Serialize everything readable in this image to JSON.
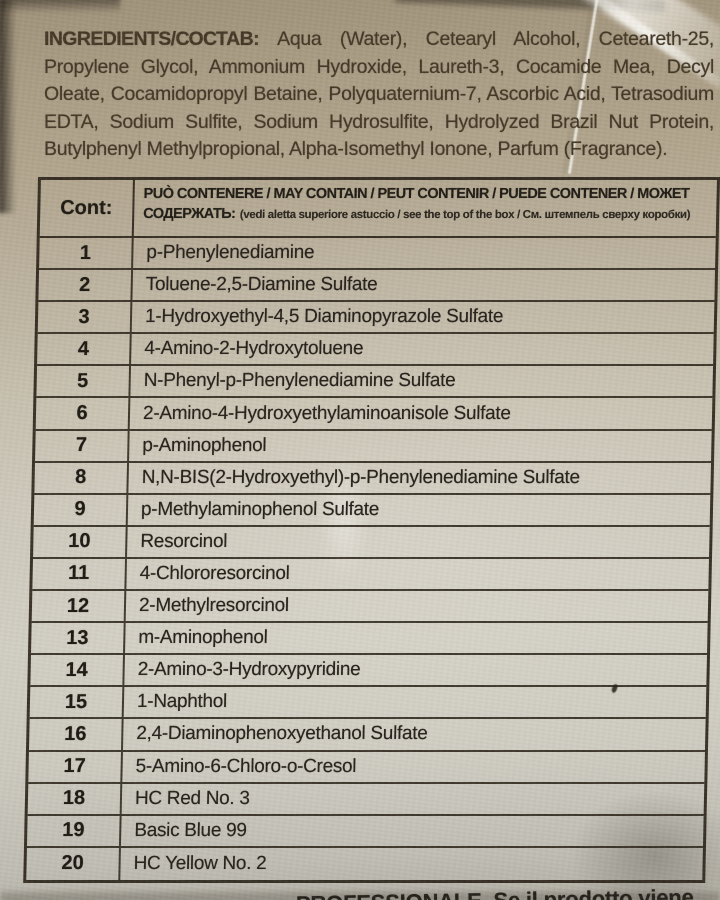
{
  "ingredients_paragraph": {
    "label": "INGREDIENTS/СОСТАВ:",
    "lines": [
      "Aqua (Water), Cetearyl Alcohol, Ceteareth-25,",
      "Propylene Glycol, Ammonium Hydroxide, Laureth-3, Cocamide Mea, Decyl",
      "Oleate, Cocamidopropyl Betaine, Polyquaternium-7, Ascorbic Acid, Tetrasodium",
      "EDTA, Sodium Sulfite, Sodium Hydrosulfite, Hydrolyzed Brazil Nut Protein,",
      "Butylphenyl Methylpropional, Alpha-Isomethyl Ionone, Parfum (Fragrance)."
    ]
  },
  "table": {
    "header": {
      "cont_label": "Cont:",
      "title_line1": "PUÒ CONTENERE / MAY CONTAIN / PEUT CONTENIR / PUEDE CONTENER / МОЖЕТ",
      "title_line2_bold": "СОДЕРЖАТЬ:",
      "note": "(vedi aletta superiore astuccio / see the top of the box / См. штемпель сверху коробки)"
    },
    "rows": [
      {
        "num": "1",
        "name": "p-Phenylenediamine"
      },
      {
        "num": "2",
        "name": "Toluene-2,5-Diamine Sulfate"
      },
      {
        "num": "3",
        "name": "1-Hydroxyethyl-4,5 Diaminopyrazole Sulfate"
      },
      {
        "num": "4",
        "name": "4-Amino-2-Hydroxytoluene"
      },
      {
        "num": "5",
        "name": "N-Phenyl-p-Phenylenediamine Sulfate"
      },
      {
        "num": "6",
        "name": "2-Amino-4-Hydroxyethylaminoanisole Sulfate"
      },
      {
        "num": "7",
        "name": "p-Aminophenol"
      },
      {
        "num": "8",
        "name": "N,N-BIS(2-Hydroxyethyl)-p-Phenylenediamine Sulfate"
      },
      {
        "num": "9",
        "name": "p-Methylaminophenol Sulfate"
      },
      {
        "num": "10",
        "name": "Resorcinol"
      },
      {
        "num": "11",
        "name": "4-Chlororesorcinol"
      },
      {
        "num": "12",
        "name": "2-Methylresorcinol"
      },
      {
        "num": "13",
        "name": "m-Aminophenol"
      },
      {
        "num": "14",
        "name": "2-Amino-3-Hydroxypyridine"
      },
      {
        "num": "15",
        "name": "1-Naphthol"
      },
      {
        "num": "16",
        "name": "2,4-Diaminophenoxyethanol Sulfate"
      },
      {
        "num": "17",
        "name": "5-Amino-6-Chloro-o-Cresol"
      },
      {
        "num": "18",
        "name": "HC Red No. 3"
      },
      {
        "num": "19",
        "name": "Basic Blue 99"
      },
      {
        "num": "20",
        "name": "HC Yellow No. 2"
      }
    ]
  },
  "bottom_clipped_text": "PROFESSIONALE. Se il prodotto viene",
  "colors": {
    "cardboard_top": "#aa9d85",
    "cardboard_bottom": "#cfccc1",
    "paragraph_ink": "#443826",
    "table_ink": "#26211a",
    "table_line": "#2b2419"
  }
}
